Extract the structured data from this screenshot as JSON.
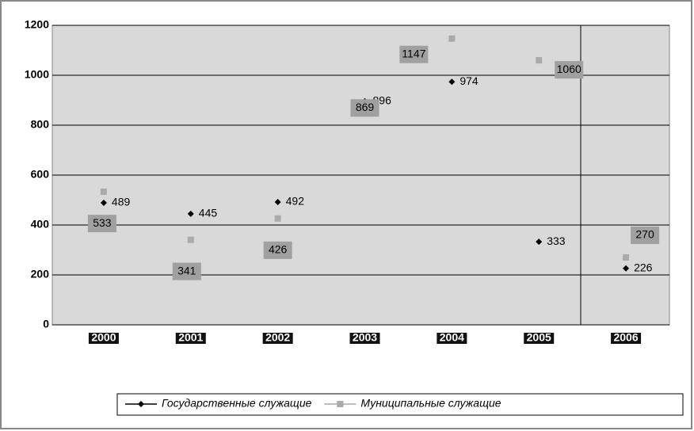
{
  "chart_data": {
    "type": "line",
    "categories": [
      "2000",
      "2001",
      "2002",
      "2003",
      "2004",
      "2005",
      "2006"
    ],
    "series": [
      {
        "name": "Государственные служащие",
        "color": "#000000",
        "values": [
          489,
          445,
          492,
          896,
          974,
          333,
          226
        ]
      },
      {
        "name": "Муниципальные служащие",
        "color": "#aaaaaa",
        "values": [
          533,
          341,
          426,
          869,
          1147,
          1060,
          270
        ]
      }
    ],
    "ylim": [
      0,
      1200
    ],
    "yticks": [
      0,
      200,
      400,
      600,
      800,
      1000,
      1200
    ],
    "grid": true
  }
}
